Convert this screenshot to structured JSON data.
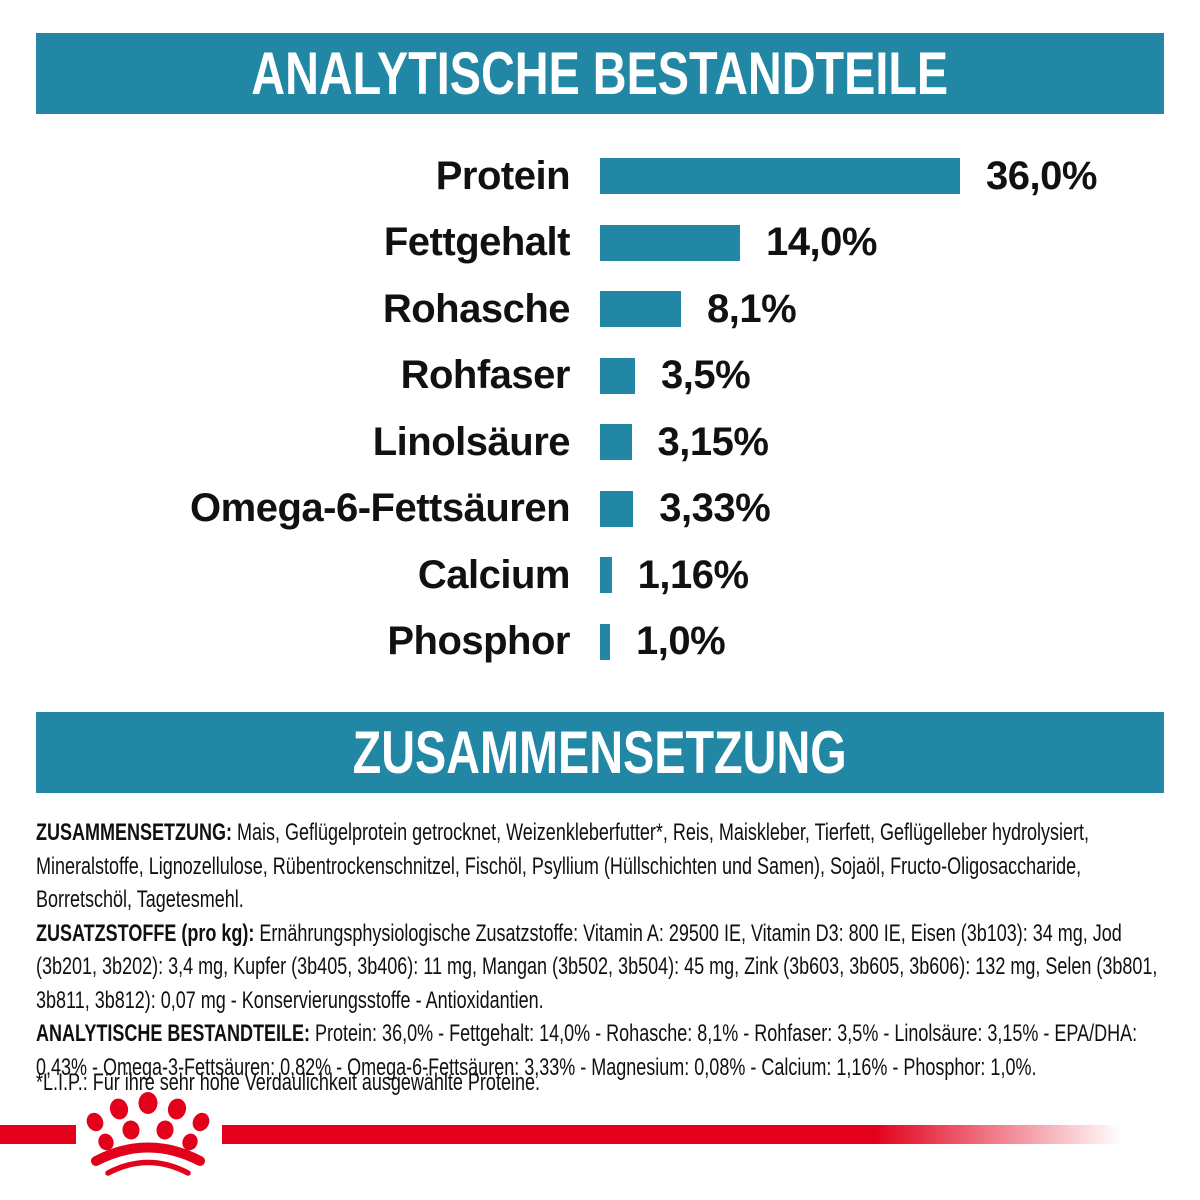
{
  "sections": {
    "analytical_title": "ANALYTISCHE BESTANDTEILE",
    "composition_title": "ZUSAMMENSETZUNG"
  },
  "colors": {
    "teal": "#2187a5",
    "brand_red": "#e2001a",
    "text": "#111111",
    "background": "#ffffff"
  },
  "chart_data": {
    "type": "bar",
    "orientation": "horizontal",
    "title": "ANALYTISCHE BESTANDTEILE",
    "unit": "%",
    "xlim": [
      0,
      40
    ],
    "grid": false,
    "legend": false,
    "bar_color": "#2187a5",
    "categories": [
      "Protein",
      "Fettgehalt",
      "Rohasche",
      "Rohfaser",
      "Linolsäure",
      "Omega-6-Fettsäuren",
      "Calcium",
      "Phosphor"
    ],
    "values": [
      36.0,
      14.0,
      8.1,
      3.5,
      3.15,
      3.33,
      1.16,
      1.0
    ],
    "rows": [
      {
        "label": "Protein",
        "value": 36.0,
        "value_label": "36,0%"
      },
      {
        "label": "Fettgehalt",
        "value": 14.0,
        "value_label": "14,0%"
      },
      {
        "label": "Rohasche",
        "value": 8.1,
        "value_label": "8,1%"
      },
      {
        "label": "Rohfaser",
        "value": 3.5,
        "value_label": "3,5%"
      },
      {
        "label": "Linolsäure",
        "value": 3.15,
        "value_label": "3,15%"
      },
      {
        "label": "Omega-6-Fettsäuren",
        "value": 3.33,
        "value_label": "3,33%"
      },
      {
        "label": "Calcium",
        "value": 1.16,
        "value_label": "1,16%"
      },
      {
        "label": "Phosphor",
        "value": 1.0,
        "value_label": "1,0%"
      }
    ]
  },
  "composition": {
    "paragraphs": [
      {
        "lead": "ZUSAMMENSETZUNG:",
        "text": " Mais, Geflügelprotein getrocknet, Weizenkleberfutter*, Reis, Maiskleber, Tierfett, Geflügelleber hydrolysiert, Mineralstoffe, Lignozellulose, Rübentrockenschnitzel, Fischöl, Psyllium (Hüllschichten und Samen), Sojaöl, Fructo-Oligosaccharide, Borretschöl, Tagetesmehl."
      },
      {
        "lead": "ZUSATZSTOFFE (pro kg):",
        "text": " Ernährungsphysiologische Zusatzstoffe: Vitamin A: 29500 IE, Vitamin D3: 800 IE, Eisen (3b103): 34 mg, Jod (3b201, 3b202): 3,4 mg, Kupfer (3b405, 3b406): 11 mg, Mangan (3b502, 3b504): 45 mg, Zink (3b603, 3b605, 3b606): 132 mg, Selen (3b801, 3b811, 3b812): 0,07 mg - Konservierungsstoffe - Antioxidantien."
      },
      {
        "lead": "ANALYTISCHE BESTANDTEILE:",
        "text": " Protein: 36,0% - Fettgehalt: 14,0% - Rohasche: 8,1% - Rohfaser: 3,5% - Linolsäure: 3,15% - EPA/DHA: 0,43% - Omega-3-Fettsäuren: 0,82% - Omega-6-Fettsäuren: 3,33% - Magnesium: 0,08% - Calcium: 1,16% - Phosphor: 1,0%."
      }
    ],
    "footnote": "*L.I.P.: Für ihre sehr hohe Verdaulichkeit ausgewählte Proteine."
  },
  "brand": {
    "logo_icon": "royal-canin-paw-crown-icon"
  }
}
